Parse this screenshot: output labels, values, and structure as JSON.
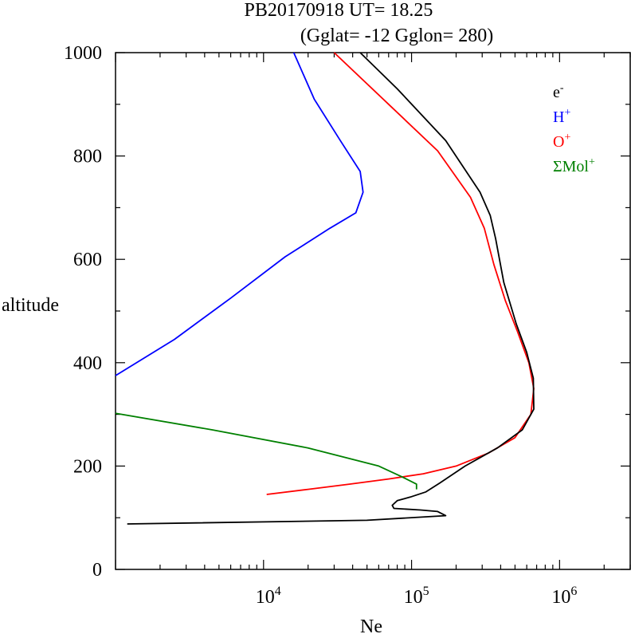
{
  "chart_data": {
    "type": "line",
    "title_line1": "PB20170918   UT=  18.25",
    "title_line2": "(Gglat= -12   Gglon=  280)",
    "xlabel": "Ne",
    "ylabel": "altitude",
    "xscale": "log",
    "xlim": [
      1000,
      3000000
    ],
    "ylim": [
      0,
      1000
    ],
    "yticks": [
      0,
      200,
      400,
      600,
      800,
      1000
    ],
    "ytick_labels": [
      "0",
      "200",
      "400",
      "600",
      "800",
      "1000"
    ],
    "xtick_labels": [
      {
        "value": 10000,
        "base": "10",
        "exp": "4"
      },
      {
        "value": 100000,
        "base": "10",
        "exp": "5"
      },
      {
        "value": 1000000,
        "base": "10",
        "exp": "6"
      }
    ],
    "legend_position": "top-right",
    "series": [
      {
        "name": "O+",
        "label_base": "O",
        "label_sup": "+",
        "color": "#ff0000",
        "points": [
          [
            10500,
            145
          ],
          [
            20000,
            155
          ],
          [
            38000,
            165
          ],
          [
            70000,
            175
          ],
          [
            120000,
            185
          ],
          [
            200000,
            200
          ],
          [
            330000,
            225
          ],
          [
            500000,
            255
          ],
          [
            640000,
            300
          ],
          [
            670000,
            350
          ],
          [
            620000,
            400
          ],
          [
            520000,
            460
          ],
          [
            430000,
            520
          ],
          [
            360000,
            590
          ],
          [
            310000,
            660
          ],
          [
            250000,
            720
          ],
          [
            150000,
            810
          ],
          [
            70000,
            900
          ],
          [
            30000,
            1000
          ]
        ]
      },
      {
        "name": "e-",
        "label_base": "e",
        "label_sup": "-",
        "color": "#000000",
        "points": [
          [
            1200,
            88
          ],
          [
            50000,
            95
          ],
          [
            170000,
            104
          ],
          [
            150000,
            112
          ],
          [
            115000,
            115
          ],
          [
            76000,
            118
          ],
          [
            74000,
            124
          ],
          [
            80000,
            133
          ],
          [
            98000,
            140
          ],
          [
            125000,
            150
          ],
          [
            155000,
            167
          ],
          [
            230000,
            200
          ],
          [
            380000,
            235
          ],
          [
            560000,
            270
          ],
          [
            670000,
            310
          ],
          [
            665000,
            370
          ],
          [
            600000,
            420
          ],
          [
            510000,
            475
          ],
          [
            420000,
            555
          ],
          [
            370000,
            640
          ],
          [
            340000,
            685
          ],
          [
            290000,
            730
          ],
          [
            170000,
            830
          ],
          [
            80000,
            930
          ],
          [
            45000,
            1000
          ]
        ]
      },
      {
        "name": "H+",
        "label_base": "H",
        "label_sup": "+",
        "color": "#0000ff",
        "points": [
          [
            1000,
            375
          ],
          [
            2500,
            445
          ],
          [
            6000,
            525
          ],
          [
            14000,
            605
          ],
          [
            28000,
            660
          ],
          [
            42000,
            690
          ],
          [
            47000,
            730
          ],
          [
            45000,
            770
          ],
          [
            33000,
            830
          ],
          [
            22000,
            910
          ],
          [
            16000,
            1000
          ]
        ]
      },
      {
        "name": "ΣMol+",
        "label_base": "ΣMol",
        "label_sup": "+",
        "color": "#008000",
        "points": [
          [
            1000,
            302
          ],
          [
            4500,
            270
          ],
          [
            20000,
            235
          ],
          [
            60000,
            200
          ],
          [
            85000,
            180
          ],
          [
            108000,
            165
          ],
          [
            108000,
            155
          ]
        ]
      }
    ]
  }
}
